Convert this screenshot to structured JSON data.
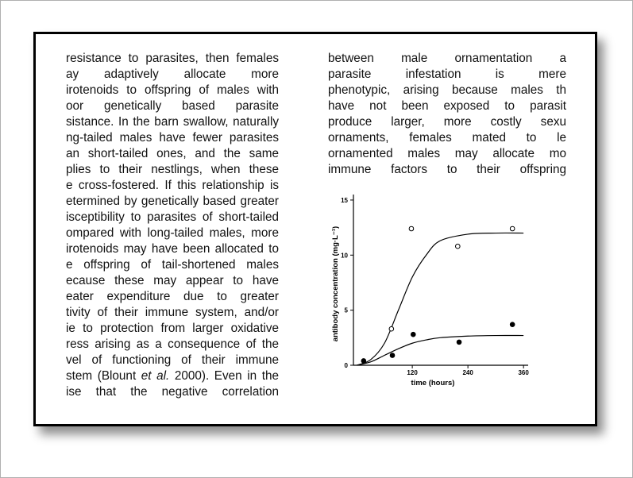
{
  "left_column": {
    "lines": [
      "resistance to parasites, then females",
      "ay adaptively allocate more",
      "irotenoids to offspring of males with",
      "oor genetically based parasite",
      "sistance. In the barn swallow, naturally",
      "ng-tailed males have fewer parasites",
      "an short-tailed ones, and the same",
      "plies to their nestlings, when these",
      "e cross-fostered. If this relationship is",
      "etermined by genetically based greater",
      "isceptibility to parasites of short-tailed",
      "ompared with long-tailed males, more",
      "irotenoids may have been allocated to",
      "e offspring of tail-shortened males",
      "ecause these may appear to have",
      "eater expenditure due to greater",
      "tivity of their immune system, and/or",
      "ie to protection from larger oxidative",
      "ress arising as a consequence of the",
      "vel of functioning of their immune",
      {
        "segments": [
          "stem (Blount ",
          "et al.",
          " 2000). Even in the"
        ]
      },
      "ise that the negative correlation"
    ]
  },
  "right_column": {
    "lines": [
      "between male ornamentation a",
      "parasite infestation is mere",
      "phenotypic, arising because males th",
      "have not been exposed to parasit",
      "produce larger, more costly sexu",
      "ornaments, females mated to le",
      "ornamented males may allocate mo",
      "immune factors to their offspring"
    ]
  },
  "figure": {
    "chart_data": {
      "type": "scatter",
      "x_label": "time (hours)",
      "y_label": "antibody concentration (mg·L⁻¹)",
      "xlim": [
        -7,
        370
      ],
      "xticks": [
        120,
        240,
        360
      ],
      "ylim": [
        0,
        15.5
      ],
      "yticks": [
        0,
        5,
        10,
        15
      ],
      "series": [
        {
          "style": "line",
          "color": "#000000",
          "x": [
            0,
            30,
            60,
            90,
            120,
            150,
            180,
            240,
            300,
            360
          ],
          "values": [
            0,
            0.5,
            2,
            5,
            8,
            10,
            11.3,
            11.9,
            12,
            12
          ]
        },
        {
          "style": "line",
          "color": "#000000",
          "x": [
            0,
            30,
            60,
            90,
            120,
            150,
            180,
            240,
            300,
            360
          ],
          "values": [
            0,
            0.3,
            0.9,
            1.5,
            2.0,
            2.3,
            2.5,
            2.65,
            2.7,
            2.7
          ]
        },
        {
          "style": "open",
          "color": "#000000",
          "x": [
            75,
            118,
            218,
            336
          ],
          "values": [
            3.3,
            12.4,
            10.8,
            12.4
          ]
        },
        {
          "style": "filled",
          "color": "#000000",
          "x": [
            15,
            77,
            122,
            221,
            336
          ],
          "values": [
            0.4,
            0.9,
            2.8,
            2.1,
            3.7
          ]
        }
      ]
    }
  }
}
